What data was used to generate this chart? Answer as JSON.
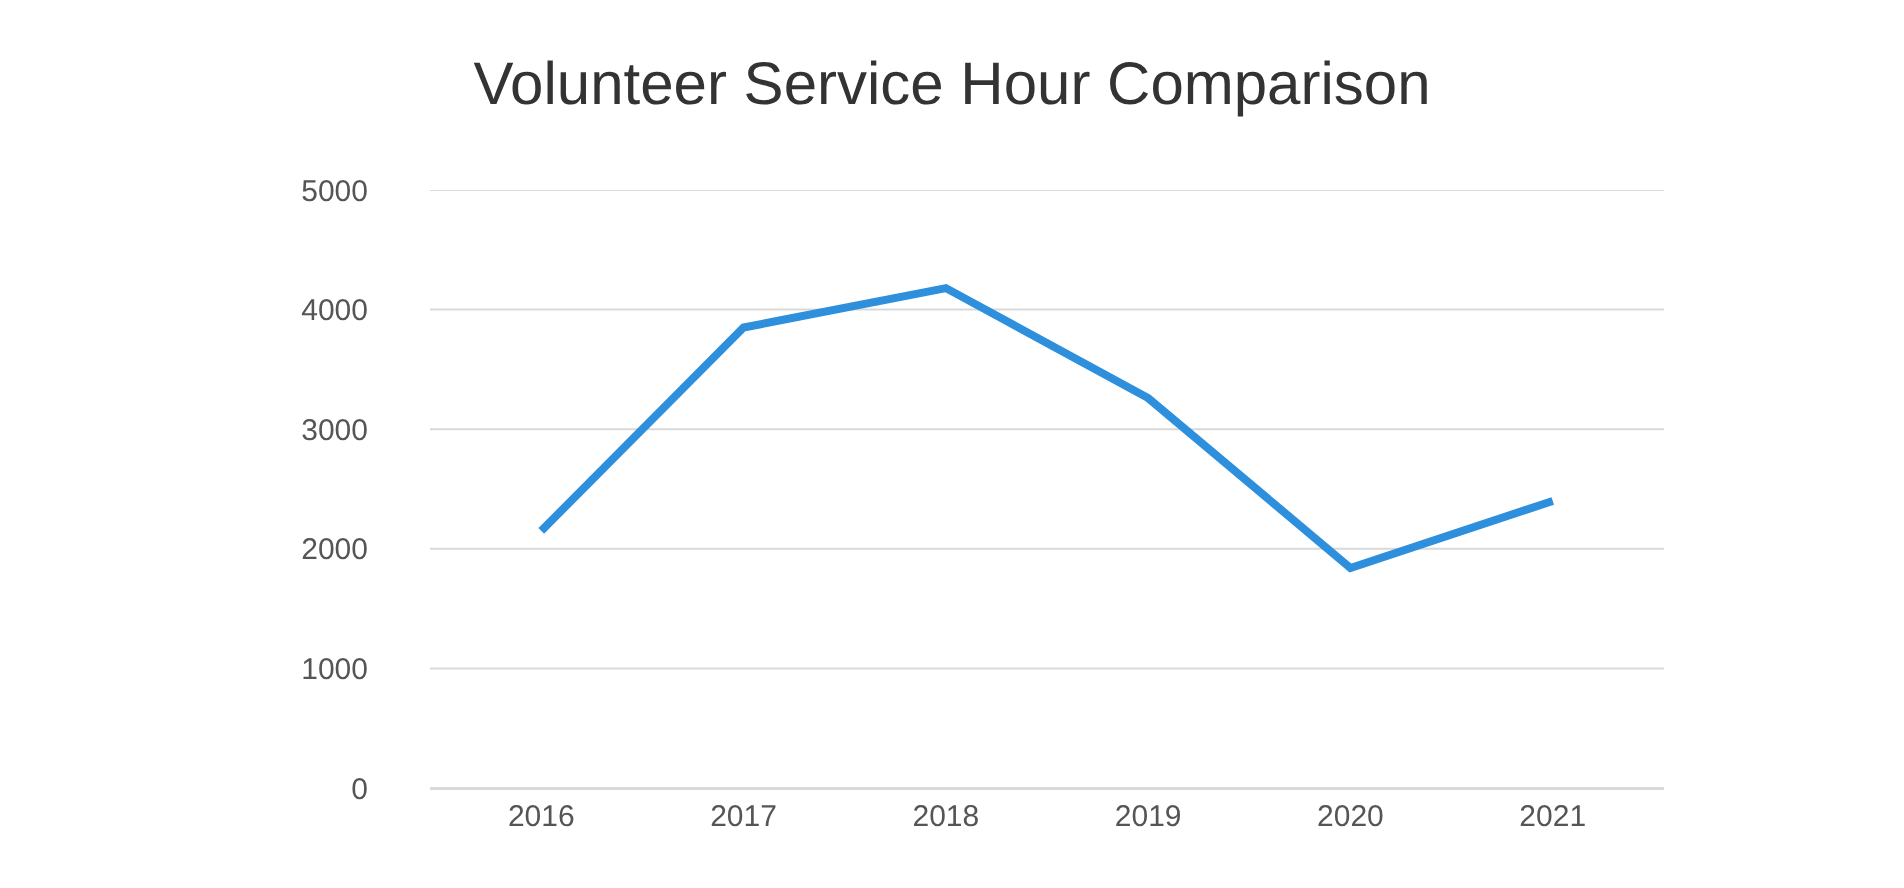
{
  "chart_data": {
    "type": "line",
    "title": "Volunteer Service Hour Comparison",
    "categories": [
      "2016",
      "2017",
      "2018",
      "2019",
      "2020",
      "2021"
    ],
    "series": [
      {
        "color": "#2e8fdc",
        "values": [
          2150,
          3850,
          4180,
          3260,
          1840,
          2400
        ]
      }
    ],
    "ylim": [
      0,
      5000
    ],
    "yticks": [
      0,
      1000,
      2000,
      3000,
      4000,
      5000
    ],
    "grid": "y",
    "marker": "none",
    "line_style": "solid"
  }
}
